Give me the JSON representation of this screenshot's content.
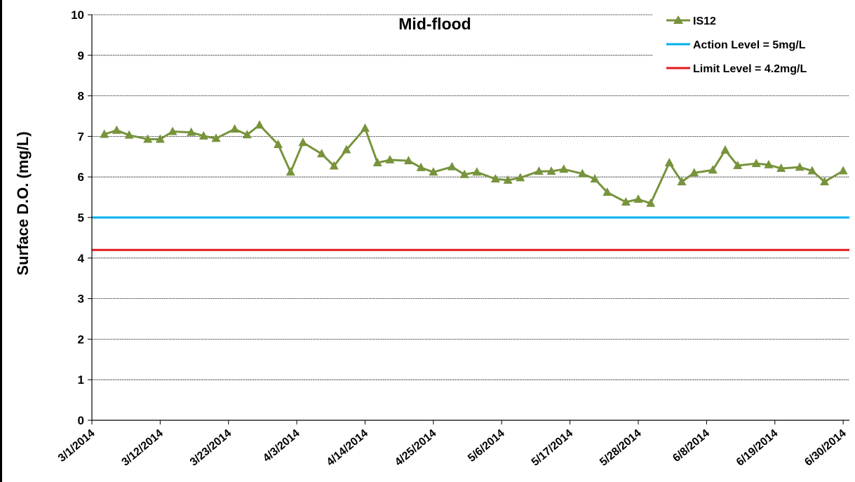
{
  "chart_data": {
    "type": "line",
    "title": "Mid-flood",
    "xlabel": "",
    "ylabel": "Surface D.O. (mg/L)",
    "ylim": [
      0,
      10
    ],
    "yticks": [
      "0",
      "1",
      "2",
      "3",
      "4",
      "5",
      "6",
      "7",
      "8",
      "9",
      "10"
    ],
    "xticks": [
      "3/1/2014",
      "3/12/2014",
      "3/23/2014",
      "4/3/2014",
      "4/14/2014",
      "4/25/2014",
      "5/6/2014",
      "5/17/2014",
      "5/28/2014",
      "6/8/2014",
      "6/19/2014",
      "6/30/2014"
    ],
    "xlim": [
      "3/1/2014",
      "7/1/2014"
    ],
    "grid": "horizontal",
    "legend_position": "top-right",
    "series": [
      {
        "name": "IS12",
        "color": "#77933C",
        "marker": "triangle",
        "x": [
          "3/3/2014",
          "3/5/2014",
          "3/7/2014",
          "3/10/2014",
          "3/12/2014",
          "3/14/2014",
          "3/17/2014",
          "3/19/2014",
          "3/21/2014",
          "3/24/2014",
          "3/26/2014",
          "3/28/2014",
          "3/31/2014",
          "4/2/2014",
          "4/4/2014",
          "4/7/2014",
          "4/9/2014",
          "4/11/2014",
          "4/14/2014",
          "4/16/2014",
          "4/18/2014",
          "4/21/2014",
          "4/23/2014",
          "4/25/2014",
          "4/28/2014",
          "4/30/2014",
          "5/2/2014",
          "5/5/2014",
          "5/7/2014",
          "5/9/2014",
          "5/12/2014",
          "5/14/2014",
          "5/16/2014",
          "5/19/2014",
          "5/21/2014",
          "5/23/2014",
          "5/26/2014",
          "5/28/2014",
          "5/30/2014",
          "6/2/2014",
          "6/4/2014",
          "6/6/2014",
          "6/9/2014",
          "6/11/2014",
          "6/13/2014",
          "6/16/2014",
          "6/18/2014",
          "6/20/2014",
          "6/23/2014",
          "6/25/2014",
          "6/27/2014",
          "6/30/2014"
        ],
        "values": [
          7.05,
          7.15,
          7.03,
          6.93,
          6.93,
          7.12,
          7.1,
          7.01,
          6.95,
          7.18,
          7.04,
          7.28,
          6.8,
          6.12,
          6.85,
          6.57,
          6.27,
          6.67,
          7.2,
          6.35,
          6.42,
          6.4,
          6.23,
          6.12,
          6.25,
          6.06,
          6.12,
          5.95,
          5.92,
          5.98,
          6.14,
          6.14,
          6.19,
          6.08,
          5.95,
          5.62,
          5.38,
          5.45,
          5.35,
          6.35,
          5.88,
          6.1,
          6.17,
          6.66,
          6.28,
          6.33,
          6.3,
          6.21,
          6.24,
          6.15,
          5.88,
          6.15
        ]
      },
      {
        "name": "Action Level = 5mg/L",
        "color": "#00B0F0",
        "constant": 5
      },
      {
        "name": "Limit Level = 4.2mg/L",
        "color": "#E31A1C",
        "constant": 4.2
      }
    ]
  }
}
